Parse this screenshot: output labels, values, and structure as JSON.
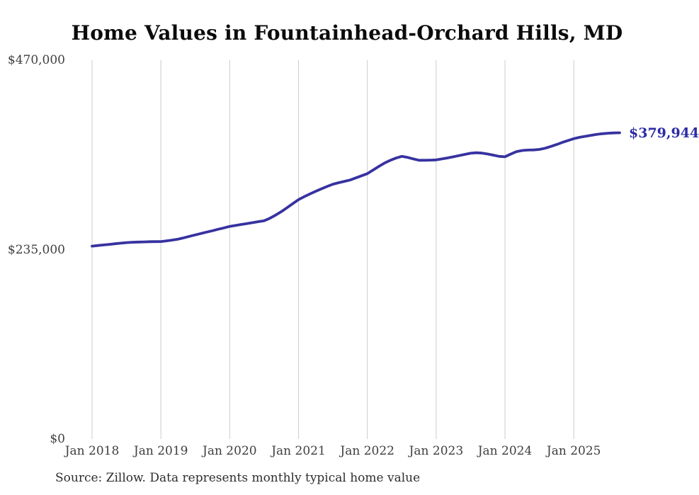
{
  "chart": {
    "title": "Home Values in Fountainhead-Orchard Hills, MD",
    "end_label": "$379,944",
    "source": "Source: Zillow. Data represents monthly typical home value",
    "colors": {
      "line": "#3732a0",
      "end_label": "#2b2ba6",
      "grid": "#cccccc",
      "axis_text": "#3f3f3f",
      "title_text": "#0b0b0b",
      "source_text": "#2e2e2e",
      "background": "#ffffff"
    }
  },
  "chart_data": {
    "type": "line",
    "title": "Home Values in Fountainhead-Orchard Hills, MD",
    "series_name": "Monthly typical home value",
    "frequency": "monthly",
    "x_start": "2018-01",
    "x_end": "2025-09",
    "x": [
      "2018-01",
      "2018-02",
      "2018-03",
      "2018-04",
      "2018-05",
      "2018-06",
      "2018-07",
      "2018-08",
      "2018-09",
      "2018-10",
      "2018-11",
      "2018-12",
      "2019-01",
      "2019-02",
      "2019-03",
      "2019-04",
      "2019-05",
      "2019-06",
      "2019-07",
      "2019-08",
      "2019-09",
      "2019-10",
      "2019-11",
      "2019-12",
      "2020-01",
      "2020-02",
      "2020-03",
      "2020-04",
      "2020-05",
      "2020-06",
      "2020-07",
      "2020-08",
      "2020-09",
      "2020-10",
      "2020-11",
      "2020-12",
      "2021-01",
      "2021-02",
      "2021-03",
      "2021-04",
      "2021-05",
      "2021-06",
      "2021-07",
      "2021-08",
      "2021-09",
      "2021-10",
      "2021-11",
      "2021-12",
      "2022-01",
      "2022-02",
      "2022-03",
      "2022-04",
      "2022-05",
      "2022-06",
      "2022-07",
      "2022-08",
      "2022-09",
      "2022-10",
      "2022-11",
      "2022-12",
      "2023-01",
      "2023-02",
      "2023-03",
      "2023-04",
      "2023-05",
      "2023-06",
      "2023-07",
      "2023-08",
      "2023-09",
      "2023-10",
      "2023-11",
      "2023-12",
      "2024-01",
      "2024-02",
      "2024-03",
      "2024-04",
      "2024-05",
      "2024-06",
      "2024-07",
      "2024-08",
      "2024-09",
      "2024-10",
      "2024-11",
      "2024-12",
      "2025-01",
      "2025-02",
      "2025-03",
      "2025-04",
      "2025-05",
      "2025-06",
      "2025-07",
      "2025-08",
      "2025-09"
    ],
    "values": [
      239300,
      240100,
      240800,
      241500,
      242300,
      243000,
      243700,
      244100,
      244400,
      244600,
      244800,
      244900,
      245000,
      245900,
      246900,
      248000,
      249700,
      251500,
      253300,
      255000,
      256800,
      258500,
      260300,
      262000,
      263800,
      265000,
      266200,
      267300,
      268500,
      269700,
      270800,
      273900,
      277800,
      282100,
      287000,
      292000,
      297000,
      300700,
      304100,
      307400,
      310500,
      313400,
      316200,
      318000,
      319700,
      321400,
      324000,
      326600,
      329300,
      333700,
      338200,
      342400,
      345800,
      348600,
      350700,
      349500,
      347500,
      345900,
      345900,
      346000,
      346300,
      347500,
      348800,
      350200,
      351700,
      353200,
      354600,
      355200,
      354700,
      353600,
      352200,
      350700,
      350200,
      353500,
      356600,
      358000,
      358500,
      358700,
      359300,
      360800,
      363000,
      365400,
      368000,
      370400,
      372700,
      374300,
      375600,
      376800,
      377900,
      378800,
      379400,
      379800,
      379944
    ],
    "latest_value": 379944,
    "latest_value_label": "$379,944",
    "ylim": [
      0,
      470000
    ],
    "y_ticks": [
      {
        "label": "$470,000",
        "value": 470000
      },
      {
        "label": "$235,000",
        "value": 235000
      },
      {
        "label": "$0",
        "value": 0
      }
    ],
    "x_ticks": [
      {
        "label": "Jan 2018",
        "month_index": 0
      },
      {
        "label": "Jan 2019",
        "month_index": 12
      },
      {
        "label": "Jan 2020",
        "month_index": 24
      },
      {
        "label": "Jan 2021",
        "month_index": 36
      },
      {
        "label": "Jan 2022",
        "month_index": 48
      },
      {
        "label": "Jan 2023",
        "month_index": 60
      },
      {
        "label": "Jan 2024",
        "month_index": 72
      },
      {
        "label": "Jan 2025",
        "month_index": 84
      }
    ],
    "grid": "vertical-only",
    "legend": "none",
    "line_color": "#3732a0"
  }
}
